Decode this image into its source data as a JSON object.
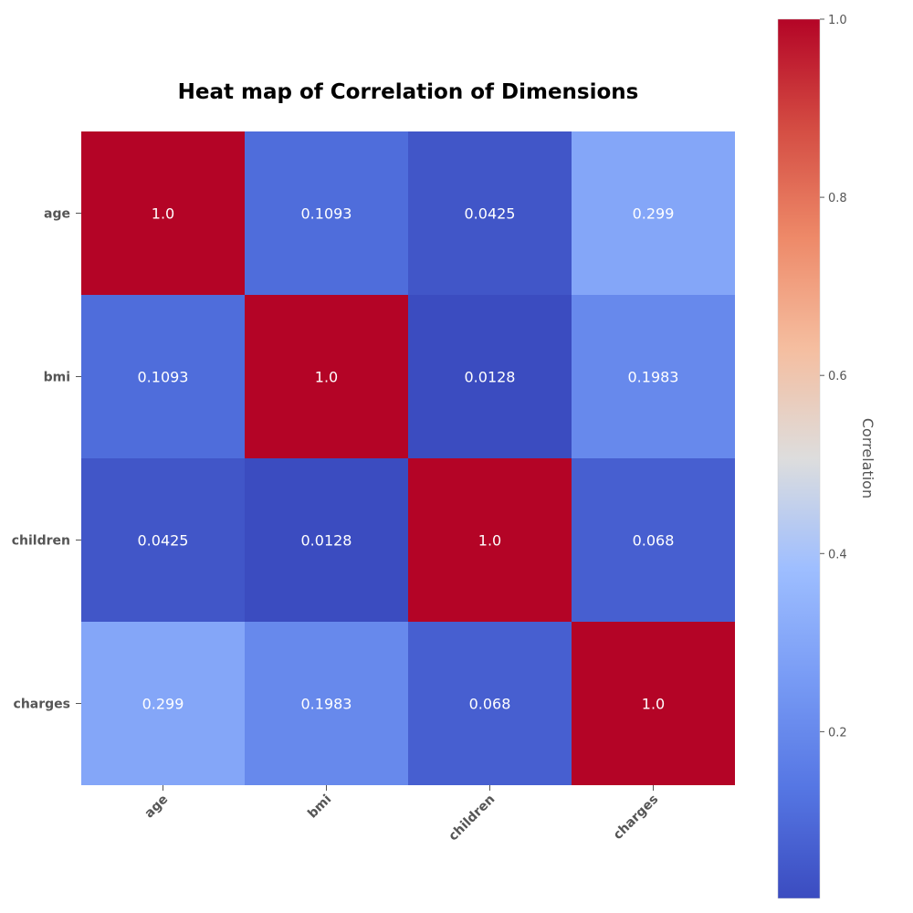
{
  "chart_data": {
    "type": "heatmap",
    "title": "Heat map of Correlation of Dimensions",
    "rows": [
      "age",
      "bmi",
      "children",
      "charges"
    ],
    "columns": [
      "age",
      "bmi",
      "children",
      "charges"
    ],
    "values": [
      [
        1.0,
        0.1093,
        0.0425,
        0.299
      ],
      [
        0.1093,
        1.0,
        0.0128,
        0.1983
      ],
      [
        0.0425,
        0.0128,
        1.0,
        0.068
      ],
      [
        0.299,
        0.1983,
        0.068,
        1.0
      ]
    ],
    "cell_labels": [
      [
        "1.0",
        "0.1093",
        "0.0425",
        "0.299"
      ],
      [
        "0.1093",
        "1.0",
        "0.0128",
        "0.1983"
      ],
      [
        "0.0425",
        "0.0128",
        "1.0",
        "0.068"
      ],
      [
        "0.299",
        "0.1983",
        "0.068",
        "1.0"
      ]
    ],
    "colormap": "coolwarm",
    "vmin": 0.0128,
    "vmax": 1.0,
    "colorbar": {
      "label": "Correlation",
      "ticks": [
        0.2,
        0.4,
        0.6,
        0.8,
        1.0
      ],
      "tick_labels": [
        "0.2",
        "0.4",
        "0.6",
        "0.8",
        "1.0"
      ]
    },
    "grid": false
  }
}
